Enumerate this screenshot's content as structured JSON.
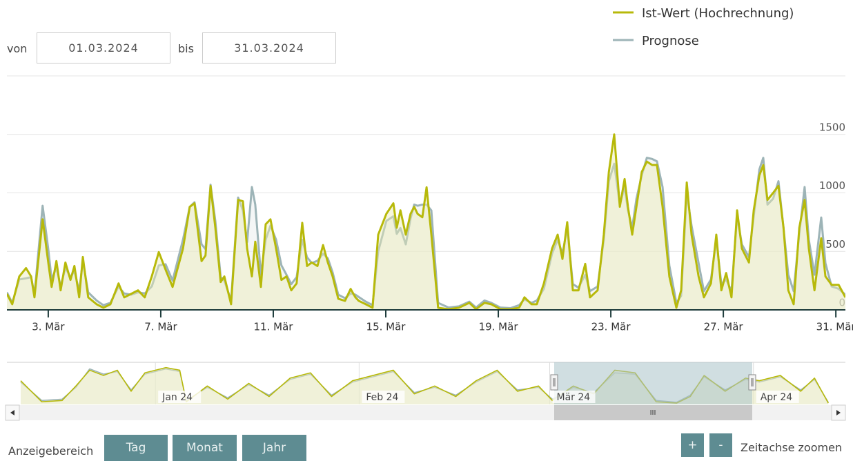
{
  "ui": {
    "from_label": "von",
    "from_date": "01.03.2024",
    "to_label": "bis",
    "to_date": "31.03.2024",
    "range_label": "Anzeigebereich",
    "buttons": [
      "Tag",
      "Monat",
      "Jahr"
    ],
    "zoom_in": "+",
    "zoom_out": "-",
    "zoom_label": "Zeitachse zoomen",
    "scroll_grip": "III"
  },
  "chart_data": [
    {
      "type": "area",
      "xlim": [
        1.53,
        31.34
      ],
      "ylim": [
        0,
        2000
      ],
      "yticks": [
        0,
        500,
        1000,
        1500
      ],
      "grid": true,
      "xticks": [
        {
          "value": 3,
          "label": "3. Mär"
        },
        {
          "value": 7,
          "label": "7. Mär"
        },
        {
          "value": 11,
          "label": "11. Mär"
        },
        {
          "value": 15,
          "label": "15. Mär"
        },
        {
          "value": 19,
          "label": "19. Mär"
        },
        {
          "value": 23,
          "label": "23. Mär"
        },
        {
          "value": 27,
          "label": "27. Mär"
        },
        {
          "value": 31,
          "label": "31. Mär"
        }
      ],
      "x": [
        1.53,
        1.72,
        1.97,
        2.21,
        2.39,
        2.51,
        2.8,
        3.0,
        3.12,
        3.29,
        3.44,
        3.61,
        3.79,
        3.93,
        4.1,
        4.23,
        4.42,
        4.72,
        4.96,
        5.21,
        5.5,
        5.7,
        5.95,
        6.19,
        6.43,
        6.68,
        6.93,
        7.17,
        7.42,
        7.79,
        8.03,
        8.2,
        8.45,
        8.59,
        8.77,
        8.94,
        9.13,
        9.26,
        9.5,
        9.75,
        9.92,
        10.07,
        10.24,
        10.36,
        10.56,
        10.73,
        10.9,
        11.1,
        11.29,
        11.47,
        11.64,
        11.83,
        12.03,
        12.2,
        12.37,
        12.57,
        12.77,
        12.94,
        13.11,
        13.31,
        13.55,
        13.75,
        13.92,
        14.04,
        14.29,
        14.53,
        14.73,
        15.02,
        15.27,
        15.39,
        15.52,
        15.71,
        15.88,
        16.01,
        16.13,
        16.3,
        16.45,
        16.62,
        16.86,
        17.23,
        17.6,
        17.97,
        18.21,
        18.51,
        18.75,
        19.07,
        19.44,
        19.74,
        19.93,
        20.18,
        20.37,
        20.62,
        20.91,
        21.11,
        21.28,
        21.45,
        21.65,
        21.85,
        22.09,
        22.26,
        22.53,
        22.75,
        22.93,
        23.12,
        23.32,
        23.49,
        23.61,
        23.76,
        23.91,
        24.1,
        24.28,
        24.47,
        24.64,
        24.84,
        25.08,
        25.33,
        25.5,
        25.7,
        25.87,
        26.12,
        26.31,
        26.56,
        26.75,
        26.93,
        27.1,
        27.29,
        27.49,
        27.66,
        27.91,
        28.08,
        28.28,
        28.42,
        28.57,
        28.77,
        28.96,
        29.14,
        29.31,
        29.5,
        29.7,
        29.89,
        30.04,
        30.24,
        30.48,
        30.63,
        30.85,
        31.1,
        31.34
      ],
      "series": [
        {
          "name": "Ist-Wert (Hochrechnung)",
          "color": "#b7b90a",
          "values": [
            137,
            48,
            286,
            357,
            286,
            107,
            774,
            405,
            196,
            417,
            167,
            405,
            256,
            375,
            107,
            452,
            107,
            48,
            18,
            48,
            226,
            107,
            137,
            167,
            107,
            286,
            494,
            345,
            196,
            524,
            881,
            911,
            417,
            464,
            1060,
            702,
            238,
            286,
            48,
            940,
            929,
            524,
            286,
            583,
            196,
            732,
            774,
            524,
            256,
            286,
            167,
            226,
            744,
            375,
            405,
            375,
            554,
            405,
            286,
            95,
            77,
            179,
            107,
            77,
            48,
            18,
            643,
            821,
            911,
            702,
            851,
            643,
            821,
            881,
            821,
            792,
            1048,
            643,
            18,
            6,
            18,
            60,
            6,
            60,
            48,
            6,
            6,
            18,
            107,
            48,
            48,
            226,
            524,
            643,
            435,
            750,
            167,
            167,
            393,
            107,
            167,
            643,
            1179,
            1500,
            881,
            1119,
            881,
            643,
            881,
            1179,
            1268,
            1238,
            1238,
            881,
            286,
            18,
            167,
            1089,
            643,
            286,
            107,
            226,
            643,
            167,
            315,
            107,
            851,
            524,
            405,
            851,
            1149,
            1238,
            940,
            1000,
            1060,
            702,
            167,
            48,
            702,
            940,
            524,
            167,
            613,
            286,
            214,
            214,
            107
          ]
        },
        {
          "name": "Prognose",
          "color": "#9db4b7",
          "values": [
            150,
            60,
            260,
            270,
            280,
            130,
            890,
            520,
            260,
            360,
            200,
            360,
            280,
            330,
            160,
            420,
            150,
            80,
            40,
            60,
            200,
            140,
            130,
            150,
            140,
            200,
            380,
            390,
            250,
            600,
            880,
            920,
            560,
            520,
            1070,
            760,
            280,
            250,
            80,
            960,
            850,
            580,
            1050,
            900,
            300,
            600,
            720,
            600,
            380,
            300,
            220,
            280,
            600,
            450,
            400,
            420,
            480,
            440,
            320,
            130,
            100,
            140,
            130,
            110,
            70,
            40,
            500,
            760,
            800,
            650,
            700,
            560,
            780,
            900,
            890,
            900,
            900,
            850,
            60,
            20,
            30,
            70,
            20,
            80,
            60,
            20,
            15,
            40,
            90,
            60,
            80,
            180,
            480,
            600,
            480,
            700,
            220,
            190,
            300,
            160,
            200,
            600,
            1100,
            1250,
            900,
            1050,
            850,
            700,
            950,
            1150,
            1300,
            1290,
            1270,
            1050,
            380,
            60,
            120,
            1000,
            720,
            400,
            160,
            260,
            600,
            220,
            260,
            160,
            800,
            560,
            450,
            800,
            1200,
            1300,
            900,
            950,
            1100,
            700,
            300,
            160,
            650,
            1050,
            600,
            300,
            790,
            400,
            200,
            180,
            130
          ]
        }
      ]
    },
    {
      "type": "area",
      "xlim": [
        -22.6,
        105
      ],
      "ylim": [
        0,
        1600
      ],
      "xticks": [
        {
          "value": 0,
          "label": "Jan 24"
        },
        {
          "value": 31,
          "label": "Feb 24"
        },
        {
          "value": 60,
          "label": "Mär 24"
        },
        {
          "value": 91,
          "label": "Apr 24"
        }
      ],
      "x": [
        -20.5,
        -17.3,
        -14.2,
        -12.1,
        -10.0,
        -7.9,
        -5.8,
        -3.7,
        -1.6,
        1.6,
        3.7,
        4.7,
        7.9,
        11.0,
        14.2,
        17.3,
        20.5,
        23.6,
        26.8,
        30.0,
        33.1,
        36.2,
        39.4,
        42.5,
        45.7,
        48.8,
        52.0,
        55.1,
        58.3,
        60.4,
        63.6,
        66.7,
        69.9,
        73.0,
        76.2,
        79.3,
        81.4,
        83.5,
        86.7,
        89.8,
        91.9,
        95.1,
        98.2,
        100.3,
        102.4
      ],
      "series": [
        {
          "name": "Ist-Wert (Hochrechnung)",
          "color": "#b7b90a",
          "values": [
            900,
            100,
            150,
            700,
            1300,
            1100,
            1300,
            500,
            1200,
            1400,
            1300,
            100,
            700,
            200,
            800,
            300,
            1000,
            1200,
            300,
            900,
            1100,
            1300,
            400,
            700,
            300,
            900,
            1300,
            500,
            700,
            150,
            700,
            400,
            1300,
            1200,
            100,
            50,
            300,
            1100,
            500,
            1000,
            900,
            1100,
            500,
            1000,
            50
          ]
        },
        {
          "name": "Prognose",
          "color": "#9db4b7",
          "values": [
            850,
            150,
            200,
            650,
            1350,
            1150,
            1250,
            550,
            1150,
            1350,
            1250,
            150,
            650,
            250,
            750,
            350,
            950,
            1150,
            350,
            850,
            1050,
            1250,
            450,
            650,
            350,
            850,
            1250,
            550,
            650,
            200,
            650,
            450,
            1200,
            1150,
            150,
            80,
            350,
            1050,
            550,
            950,
            850,
            1050,
            550,
            950,
            80
          ]
        }
      ]
    }
  ]
}
